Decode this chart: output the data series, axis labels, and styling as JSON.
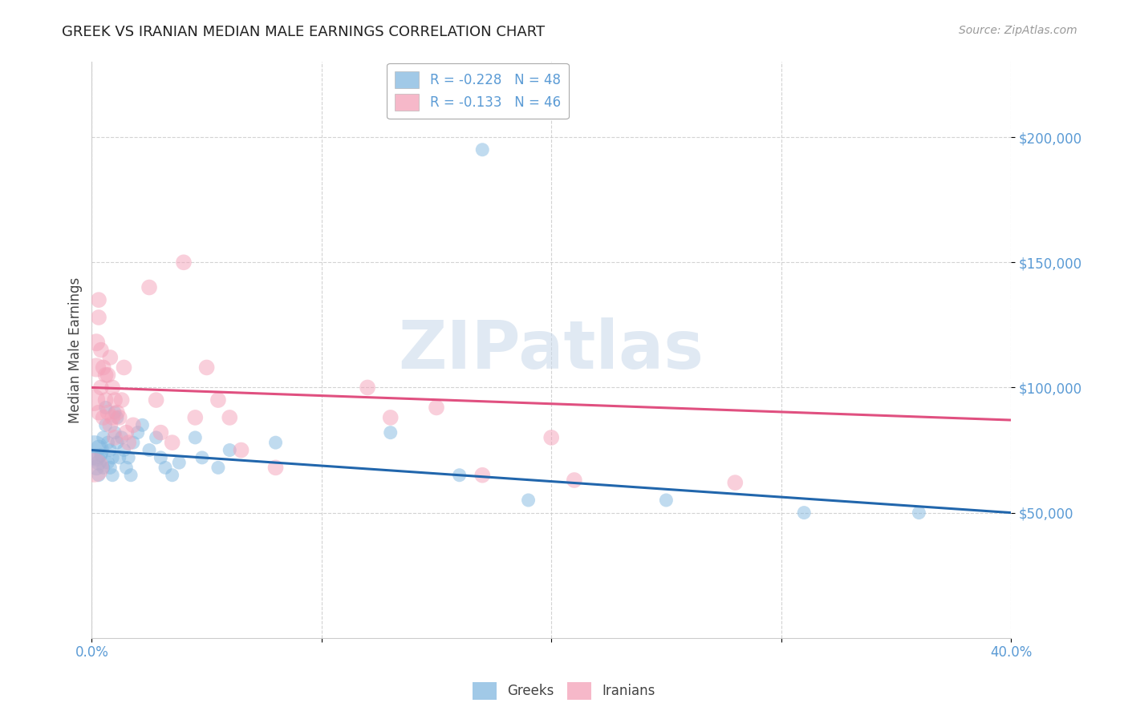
{
  "title": "GREEK VS IRANIAN MEDIAN MALE EARNINGS CORRELATION CHART",
  "source": "Source: ZipAtlas.com",
  "ylabel": "Median Male Earnings",
  "watermark": "ZIPatlas",
  "xlim": [
    0.0,
    0.4
  ],
  "ylim": [
    0,
    230000
  ],
  "yticks": [
    50000,
    100000,
    150000,
    200000
  ],
  "ytick_labels": [
    "$50,000",
    "$100,000",
    "$150,000",
    "$200,000"
  ],
  "xticks": [
    0.0,
    0.1,
    0.2,
    0.3,
    0.4
  ],
  "xtick_labels": [
    "0.0%",
    "",
    "",
    "",
    "40.0%"
  ],
  "legend_greek": "R = -0.228   N = 48",
  "legend_iranian": "R = -0.133   N = 46",
  "greek_color": "#82b8e0",
  "iranian_color": "#f4a0b8",
  "greek_line_color": "#2166ac",
  "iranian_line_color": "#e05080",
  "axis_label_color": "#5b9bd5",
  "tick_label_color": "#5b9bd5",
  "background_color": "#ffffff",
  "greek_points": [
    [
      0.001,
      75000
    ],
    [
      0.002,
      72000
    ],
    [
      0.002,
      68000
    ],
    [
      0.003,
      76000
    ],
    [
      0.003,
      70000
    ],
    [
      0.003,
      65000
    ],
    [
      0.004,
      73000
    ],
    [
      0.005,
      80000
    ],
    [
      0.005,
      68000
    ],
    [
      0.006,
      85000
    ],
    [
      0.006,
      92000
    ],
    [
      0.007,
      78000
    ],
    [
      0.007,
      70000
    ],
    [
      0.008,
      75000
    ],
    [
      0.008,
      68000
    ],
    [
      0.009,
      72000
    ],
    [
      0.009,
      65000
    ],
    [
      0.01,
      90000
    ],
    [
      0.01,
      82000
    ],
    [
      0.011,
      78000
    ],
    [
      0.011,
      88000
    ],
    [
      0.012,
      72000
    ],
    [
      0.013,
      80000
    ],
    [
      0.014,
      75000
    ],
    [
      0.015,
      68000
    ],
    [
      0.016,
      72000
    ],
    [
      0.017,
      65000
    ],
    [
      0.018,
      78000
    ],
    [
      0.02,
      82000
    ],
    [
      0.022,
      85000
    ],
    [
      0.025,
      75000
    ],
    [
      0.028,
      80000
    ],
    [
      0.03,
      72000
    ],
    [
      0.032,
      68000
    ],
    [
      0.035,
      65000
    ],
    [
      0.038,
      70000
    ],
    [
      0.045,
      80000
    ],
    [
      0.048,
      72000
    ],
    [
      0.055,
      68000
    ],
    [
      0.06,
      75000
    ],
    [
      0.08,
      78000
    ],
    [
      0.13,
      82000
    ],
    [
      0.16,
      65000
    ],
    [
      0.19,
      55000
    ],
    [
      0.25,
      55000
    ],
    [
      0.31,
      50000
    ],
    [
      0.36,
      50000
    ],
    [
      0.17,
      195000
    ]
  ],
  "iranian_points": [
    [
      0.001,
      68000
    ],
    [
      0.001,
      95000
    ],
    [
      0.002,
      108000
    ],
    [
      0.002,
      118000
    ],
    [
      0.003,
      90000
    ],
    [
      0.003,
      128000
    ],
    [
      0.003,
      135000
    ],
    [
      0.004,
      100000
    ],
    [
      0.004,
      115000
    ],
    [
      0.005,
      88000
    ],
    [
      0.005,
      108000
    ],
    [
      0.006,
      105000
    ],
    [
      0.006,
      95000
    ],
    [
      0.007,
      90000
    ],
    [
      0.007,
      105000
    ],
    [
      0.008,
      112000
    ],
    [
      0.008,
      85000
    ],
    [
      0.009,
      100000
    ],
    [
      0.009,
      88000
    ],
    [
      0.01,
      80000
    ],
    [
      0.01,
      95000
    ],
    [
      0.011,
      90000
    ],
    [
      0.012,
      88000
    ],
    [
      0.013,
      95000
    ],
    [
      0.014,
      108000
    ],
    [
      0.015,
      82000
    ],
    [
      0.016,
      78000
    ],
    [
      0.018,
      85000
    ],
    [
      0.025,
      140000
    ],
    [
      0.028,
      95000
    ],
    [
      0.03,
      82000
    ],
    [
      0.035,
      78000
    ],
    [
      0.04,
      150000
    ],
    [
      0.045,
      88000
    ],
    [
      0.05,
      108000
    ],
    [
      0.055,
      95000
    ],
    [
      0.06,
      88000
    ],
    [
      0.065,
      75000
    ],
    [
      0.08,
      68000
    ],
    [
      0.13,
      88000
    ],
    [
      0.15,
      92000
    ],
    [
      0.2,
      80000
    ],
    [
      0.21,
      63000
    ],
    [
      0.12,
      100000
    ],
    [
      0.17,
      65000
    ],
    [
      0.28,
      62000
    ]
  ],
  "greek_sizes": [
    700,
    250,
    200,
    200,
    200,
    150,
    150,
    150,
    150,
    150,
    150,
    150,
    150,
    150,
    150,
    150,
    150,
    150,
    150,
    150,
    150,
    150,
    150,
    150,
    150,
    150,
    150,
    150,
    150,
    150,
    150,
    150,
    150,
    150,
    150,
    150,
    150,
    150,
    150,
    150,
    150,
    150,
    150,
    150,
    150,
    150,
    150,
    150
  ],
  "iranian_sizes": [
    700,
    400,
    300,
    250,
    200,
    200,
    200,
    200,
    200,
    200,
    200,
    200,
    200,
    200,
    200,
    200,
    200,
    200,
    200,
    200,
    200,
    200,
    200,
    200,
    200,
    200,
    200,
    200,
    200,
    200,
    200,
    200,
    200,
    200,
    200,
    200,
    200,
    200,
    200,
    200,
    200,
    200,
    200,
    200,
    200,
    200
  ],
  "greek_line": [
    0.0,
    75000,
    0.4,
    50000
  ],
  "iranian_line": [
    0.0,
    100000,
    0.4,
    87000
  ]
}
